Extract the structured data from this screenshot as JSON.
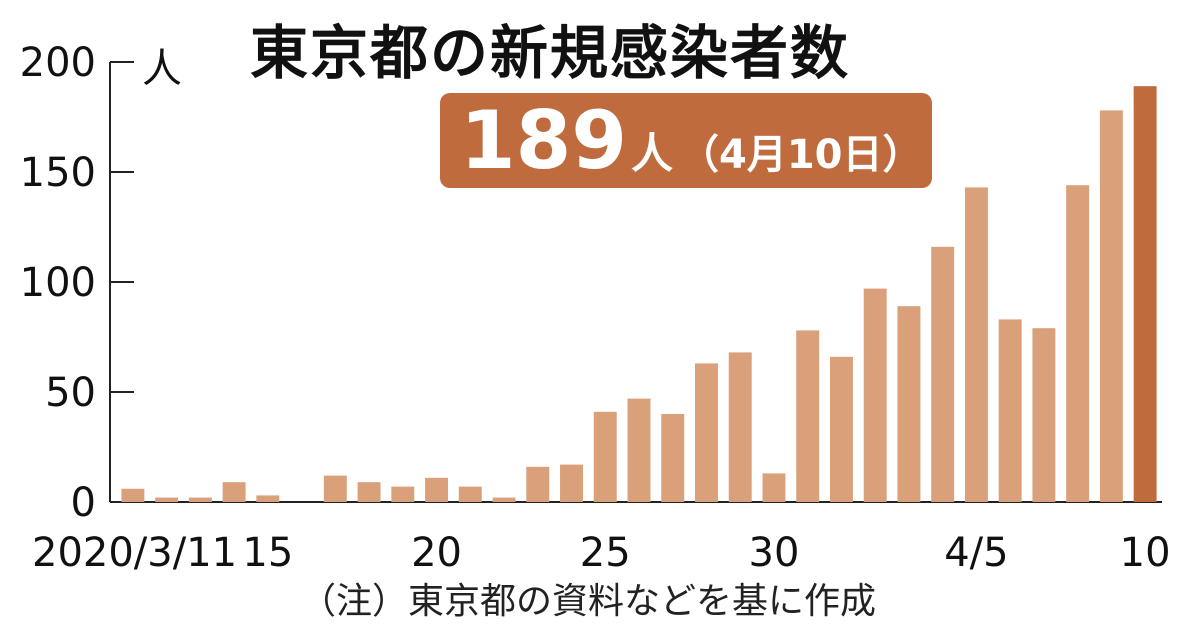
{
  "chart_data": {
    "type": "bar",
    "title": "東京都の新規感染者数",
    "ylabel": "人",
    "ylim": [
      0,
      200
    ],
    "yticks": [
      0,
      50,
      100,
      150,
      200
    ],
    "x_tick_labels": [
      {
        "index": 0,
        "label": "2020/3/11"
      },
      {
        "index": 4,
        "label": "15"
      },
      {
        "index": 9,
        "label": "20"
      },
      {
        "index": 14,
        "label": "25"
      },
      {
        "index": 19,
        "label": "30"
      },
      {
        "index": 25,
        "label": "4/5"
      },
      {
        "index": 30,
        "label": "10"
      }
    ],
    "values": [
      6,
      2,
      2,
      9,
      3,
      null,
      12,
      9,
      7,
      11,
      7,
      2,
      16,
      17,
      41,
      47,
      40,
      63,
      68,
      13,
      78,
      66,
      97,
      89,
      116,
      143,
      83,
      79,
      144,
      178,
      189
    ],
    "highlight_index": 30,
    "colors": {
      "bar": "#d9a07a",
      "highlight": "#bf6b3d"
    },
    "annotation": {
      "value": "189",
      "unit": "人",
      "date": "（4月10日）"
    },
    "note": "（注）東京都の資料などを基に作成"
  }
}
